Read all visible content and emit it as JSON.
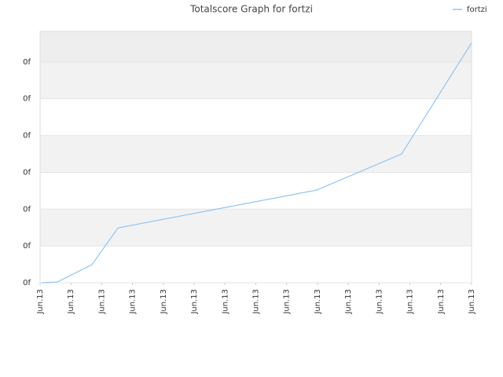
{
  "chart_data": {
    "type": "line",
    "title": "Totalscore Graph for fortzi",
    "x": [
      0.05,
      0.56,
      1.68,
      2.53,
      8.98,
      11.73,
      12.86,
      14
    ],
    "series": [
      {
        "name": "fortzi",
        "color": "#90c4f0",
        "values": [
          0,
          0.02,
          0.49,
          1.49,
          2.52,
          3.5,
          5.0,
          6.52
        ]
      }
    ],
    "xlim": [
      0,
      14
    ],
    "xticks": [
      {
        "value": 0,
        "label": "Jun.13"
      },
      {
        "value": 1,
        "label": "Jun.13"
      },
      {
        "value": 2,
        "label": "Jun.13"
      },
      {
        "value": 3,
        "label": "Jun.13"
      },
      {
        "value": 4,
        "label": "Jun.13"
      },
      {
        "value": 5,
        "label": "Jun.13"
      },
      {
        "value": 6,
        "label": "Jun.13"
      },
      {
        "value": 7,
        "label": "Jun.13"
      },
      {
        "value": 8,
        "label": "Jun.13"
      },
      {
        "value": 9,
        "label": "Jun.13"
      },
      {
        "value": 10,
        "label": "Jun.13"
      },
      {
        "value": 11,
        "label": "Jun.13"
      },
      {
        "value": 12,
        "label": "Jun.13"
      },
      {
        "value": 13,
        "label": "Jun.13"
      },
      {
        "value": 14,
        "label": "Jun.13"
      }
    ],
    "ylim": [
      0,
      6.83
    ],
    "yticks": [
      {
        "value": 0,
        "label": "0f"
      },
      {
        "value": 1,
        "label": "0f"
      },
      {
        "value": 2,
        "label": "0f"
      },
      {
        "value": 3,
        "label": "0f"
      },
      {
        "value": 4,
        "label": "0f"
      },
      {
        "value": 5,
        "label": "0f"
      },
      {
        "value": 6,
        "label": "0f"
      }
    ],
    "grid": true,
    "legend": "top-right"
  }
}
